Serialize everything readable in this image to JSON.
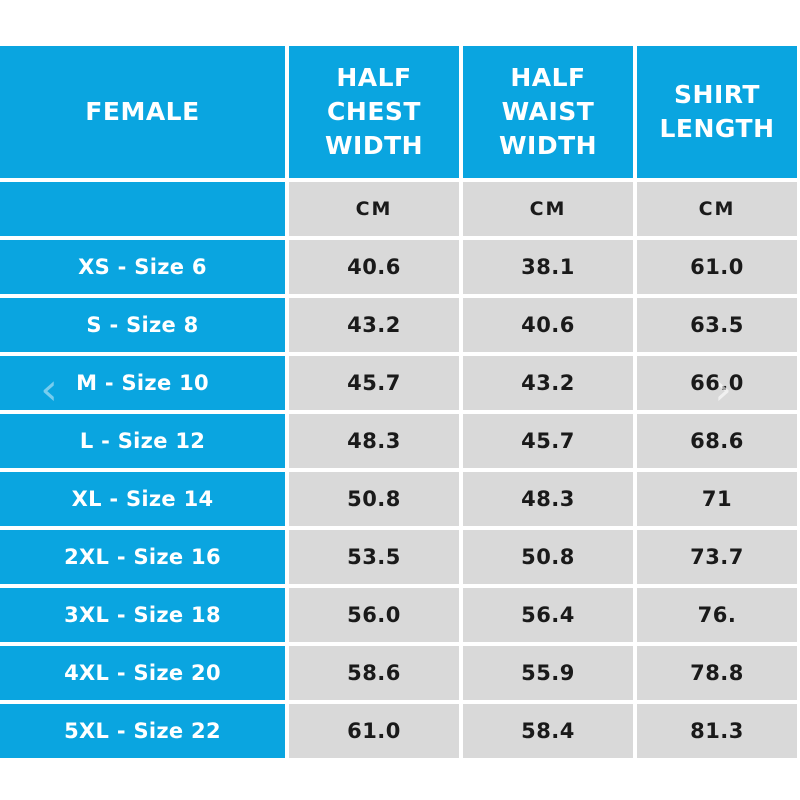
{
  "table": {
    "headers": {
      "female": [
        "FEMALE"
      ],
      "half_chest_width": [
        "HALF",
        "CHEST",
        "WIDTH"
      ],
      "half_waist_width": [
        "HALF",
        "WAIST",
        "WIDTH"
      ],
      "shirt_length": [
        "SHIRT",
        "LENGTH"
      ]
    },
    "units": [
      "CM",
      "CM",
      "CM"
    ],
    "rows": [
      {
        "size": "XS - Size 6",
        "chest": "40.6",
        "waist": "38.1",
        "length": "61.0"
      },
      {
        "size": "S - Size 8",
        "chest": "43.2",
        "waist": "40.6",
        "length": "63.5"
      },
      {
        "size": "M - Size 10",
        "chest": "45.7",
        "waist": "43.2",
        "length": "66.0"
      },
      {
        "size": "L - Size 12",
        "chest": "48.3",
        "waist": "45.7",
        "length": "68.6"
      },
      {
        "size": "XL - Size 14",
        "chest": "50.8",
        "waist": "48.3",
        "length": "71"
      },
      {
        "size": "2XL - Size 16",
        "chest": "53.5",
        "waist": "50.8",
        "length": "73.7"
      },
      {
        "size": "3XL - Size 18",
        "chest": "56.0",
        "waist": "56.4",
        "length": "76."
      },
      {
        "size": "4XL - Size 20",
        "chest": "58.6",
        "waist": "55.9",
        "length": "78.8"
      },
      {
        "size": "5XL - Size 22",
        "chest": "61.0",
        "waist": "58.4",
        "length": "81.3"
      }
    ]
  },
  "navigation": {
    "prev_icon": "chevron-left-icon",
    "prev_glyph": "‹",
    "next_icon": "chevron-right-icon",
    "next_glyph": "›"
  },
  "colors": {
    "header_blue": "#0aa5e0",
    "cell_gray": "#d9d9d9",
    "text_dark": "#1a1a1a",
    "text_white": "#ffffff"
  }
}
